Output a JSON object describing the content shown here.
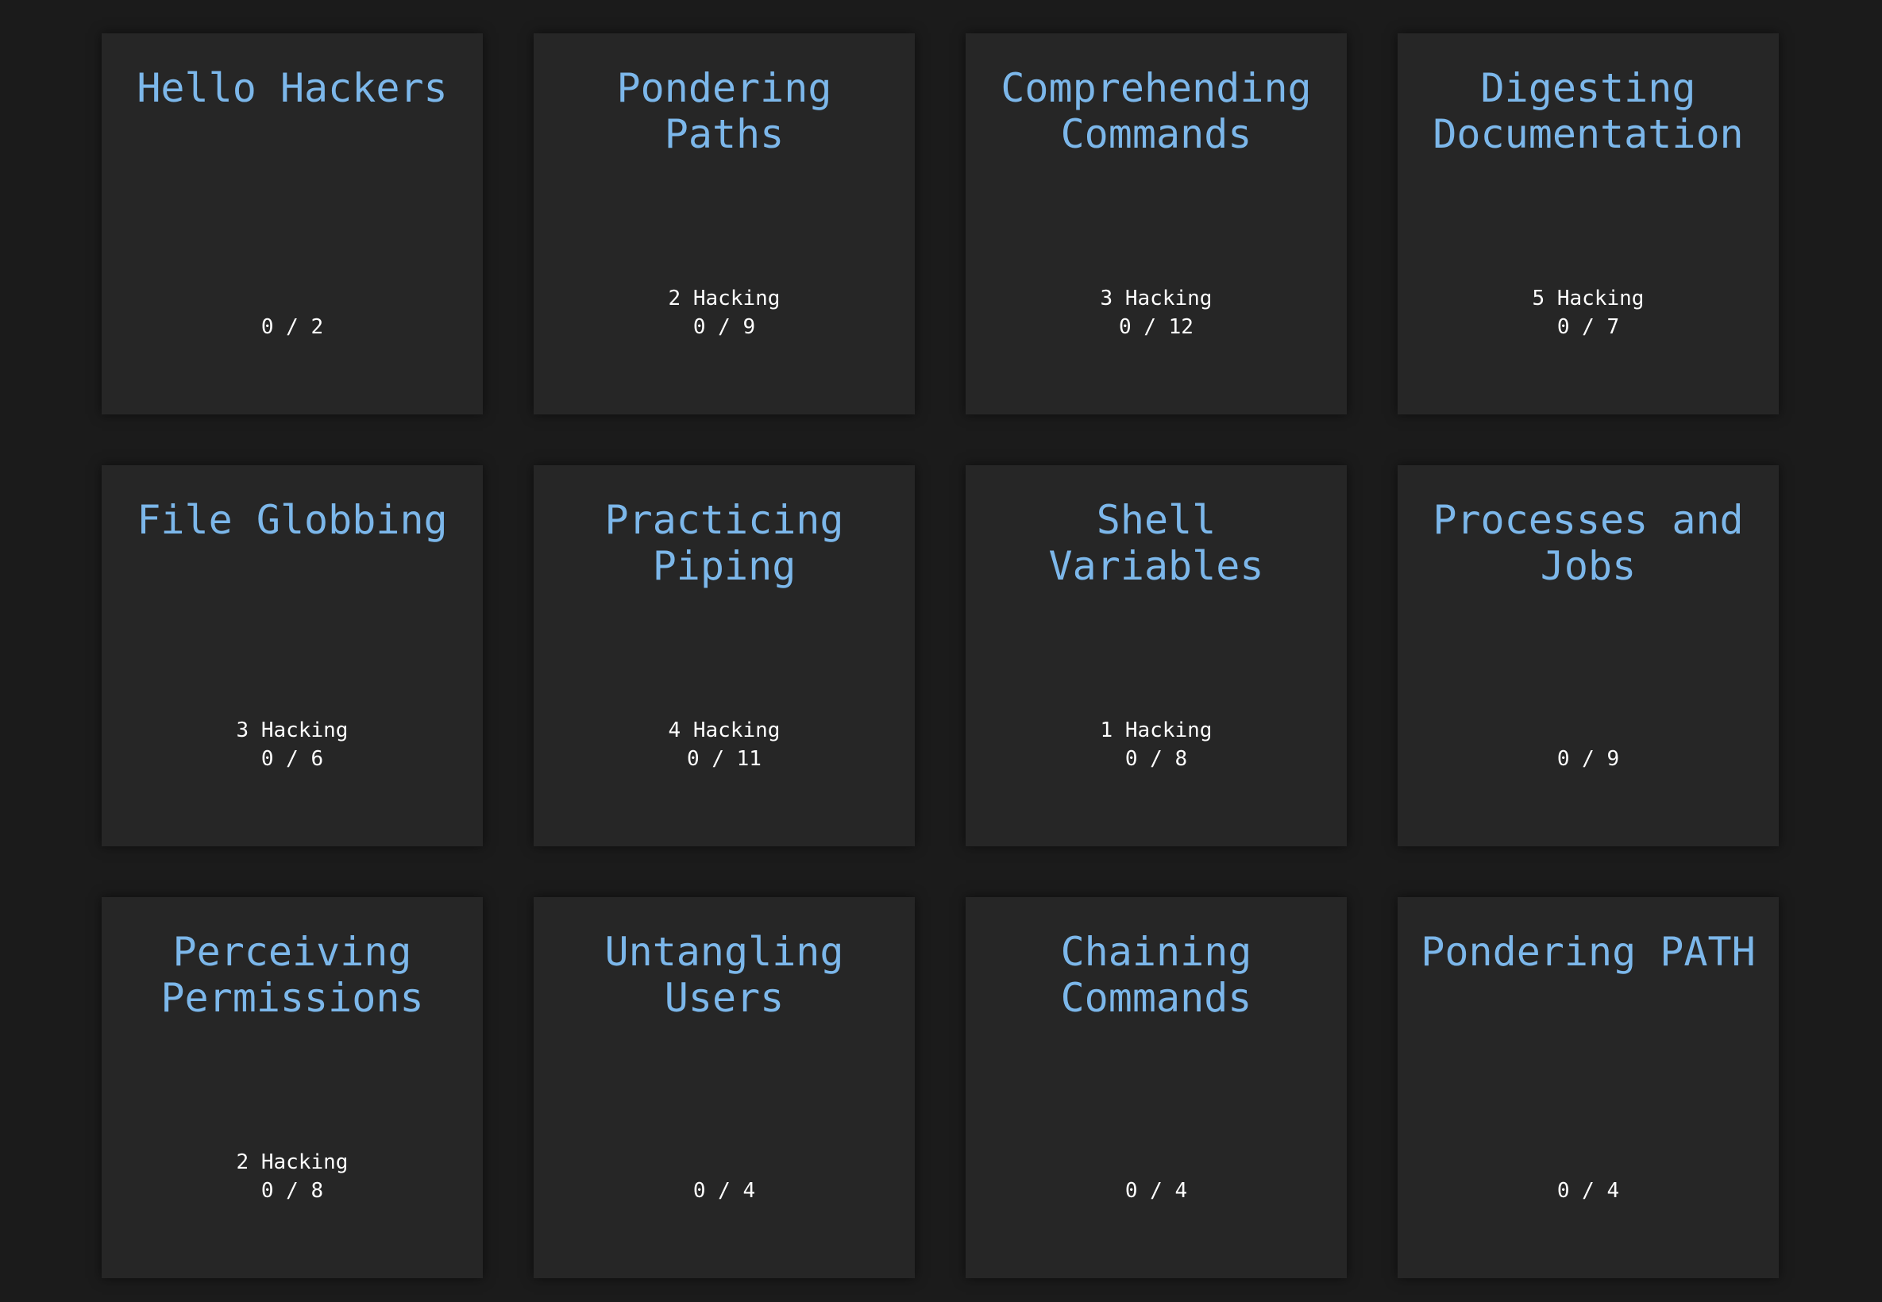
{
  "modules": [
    {
      "title": "Hello Hackers",
      "hacking": "",
      "progress": "0 / 2"
    },
    {
      "title": "Pondering Paths",
      "hacking": "2 Hacking",
      "progress": "0 / 9"
    },
    {
      "title": "Comprehending Commands",
      "hacking": "3 Hacking",
      "progress": "0 / 12"
    },
    {
      "title": "Digesting Documentation",
      "hacking": "5 Hacking",
      "progress": "0 / 7"
    },
    {
      "title": "File Globbing",
      "hacking": "3 Hacking",
      "progress": "0 / 6"
    },
    {
      "title": "Practicing Piping",
      "hacking": "4 Hacking",
      "progress": "0 / 11"
    },
    {
      "title": "Shell Variables",
      "hacking": "1 Hacking",
      "progress": "0 / 8"
    },
    {
      "title": "Processes and Jobs",
      "hacking": "",
      "progress": "0 / 9"
    },
    {
      "title": "Perceiving Permissions",
      "hacking": "2 Hacking",
      "progress": "0 / 8"
    },
    {
      "title": "Untangling Users",
      "hacking": "",
      "progress": "0 / 4"
    },
    {
      "title": "Chaining Commands",
      "hacking": "",
      "progress": "0 / 4"
    },
    {
      "title": "Pondering PATH",
      "hacking": "",
      "progress": "0 / 4"
    }
  ],
  "colors": {
    "background": "#1b1b1b",
    "card": "#262626",
    "title": "#7cb7ea",
    "text": "#ffffff"
  }
}
